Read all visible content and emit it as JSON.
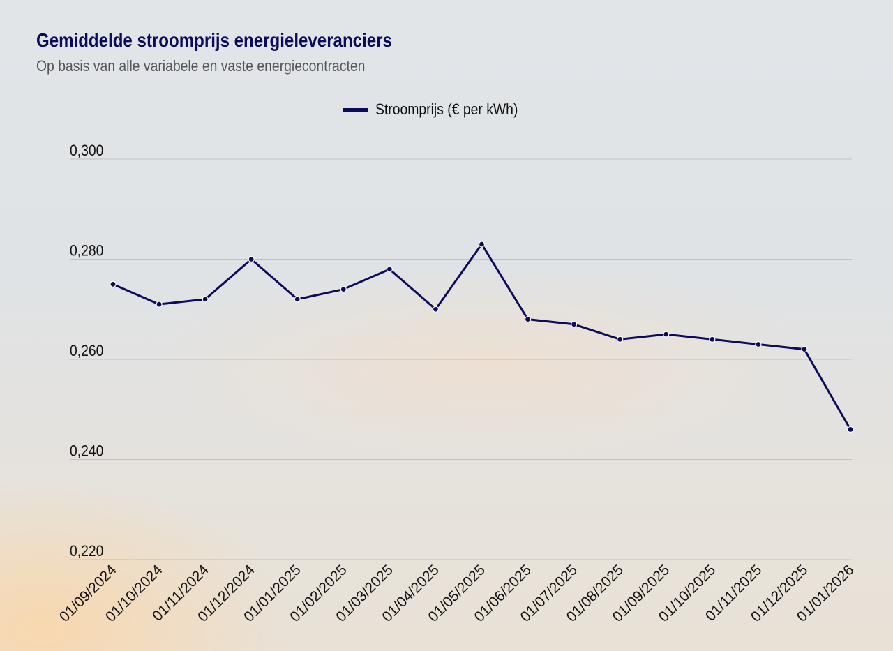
{
  "chart_data": {
    "type": "line",
    "title": "Gemiddelde stroomprijs energieleveranciers",
    "subtitle": "Op basis van alle variabele en vaste energiecontracten",
    "legend_position": "top",
    "grid": true,
    "categories": [
      "01/09/2024",
      "01/10/2024",
      "01/11/2024",
      "01/12/2024",
      "01/01/2025",
      "01/02/2025",
      "01/03/2025",
      "01/04/2025",
      "01/05/2025",
      "01/06/2025",
      "01/07/2025",
      "01/08/2025",
      "01/09/2025",
      "01/10/2025",
      "01/11/2025",
      "01/12/2025",
      "01/01/2026"
    ],
    "series": [
      {
        "name": "Stroomprijs (€ per kWh)",
        "color": "#0b0b5c",
        "values": [
          0.275,
          0.271,
          0.272,
          0.28,
          0.272,
          0.274,
          0.278,
          0.27,
          0.283,
          0.268,
          0.267,
          0.264,
          0.265,
          0.264,
          0.263,
          0.262,
          0.246
        ]
      }
    ],
    "ylim": [
      0.22,
      0.3
    ],
    "yticks": [
      0.3,
      0.28,
      0.26,
      0.24,
      0.22
    ],
    "ytick_labels": [
      "0,300",
      "0,280",
      "0,260",
      "0,240",
      "0,220"
    ]
  }
}
